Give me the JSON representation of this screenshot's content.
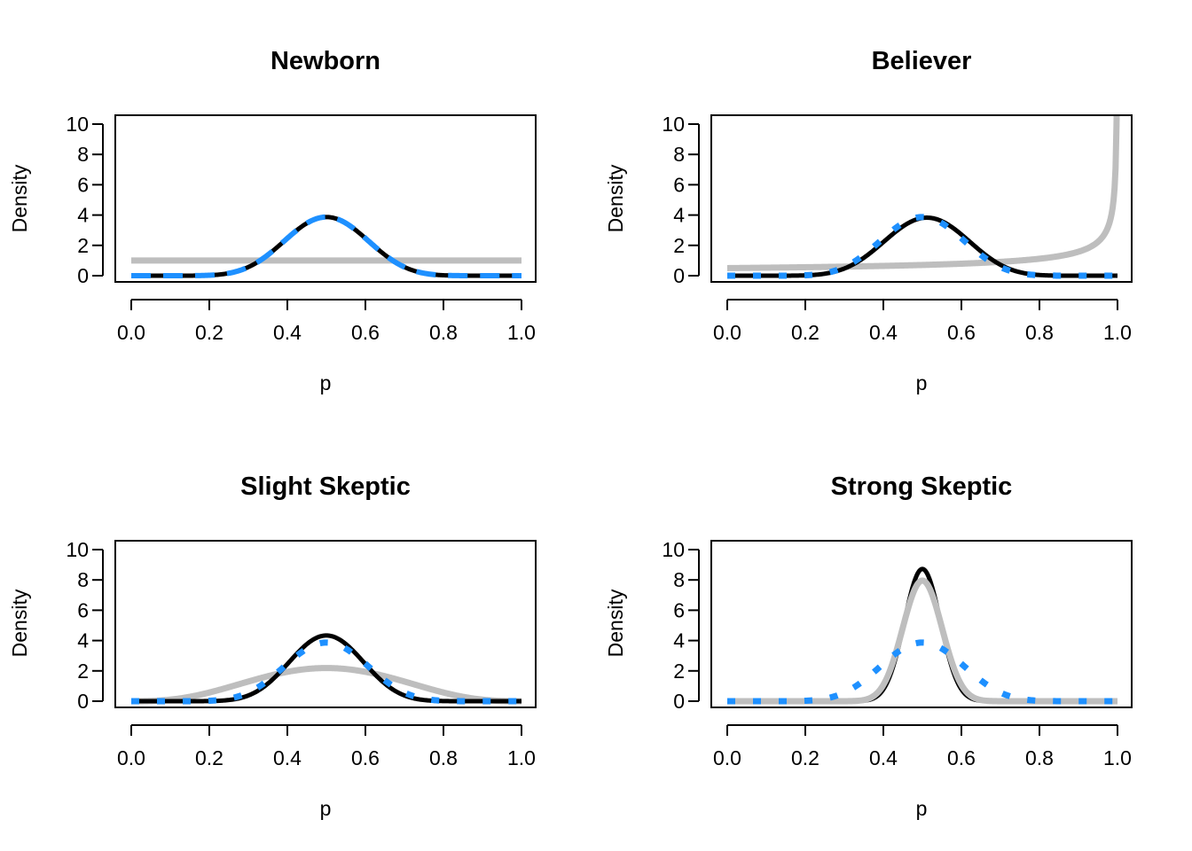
{
  "chart_data": [
    {
      "type": "line",
      "title": "Newborn",
      "xlabel": "p",
      "ylabel": "Density",
      "xlim": [
        0,
        1
      ],
      "ylim": [
        0,
        10
      ],
      "x_ticks": [
        "0.0",
        "0.2",
        "0.4",
        "0.6",
        "0.8",
        "1.0"
      ],
      "y_ticks": [
        "0",
        "2",
        "4",
        "6",
        "8",
        "10"
      ],
      "grid": false,
      "legend": "none",
      "series": [
        {
          "color": "#bebebe",
          "style": "solid-thick",
          "distribution": "beta",
          "alpha": 1,
          "beta": 1
        },
        {
          "color": "#000000",
          "style": "solid",
          "distribution": "beta",
          "alpha": 12,
          "beta": 12
        },
        {
          "color": "#1e90ff",
          "style": "dashed",
          "distribution": "beta",
          "alpha": 12,
          "beta": 12
        }
      ]
    },
    {
      "type": "line",
      "title": "Believer",
      "xlabel": "p",
      "ylabel": "Density",
      "xlim": [
        0,
        1
      ],
      "ylim": [
        0,
        10
      ],
      "x_ticks": [
        "0.0",
        "0.2",
        "0.4",
        "0.6",
        "0.8",
        "1.0"
      ],
      "y_ticks": [
        "0",
        "2",
        "4",
        "6",
        "8",
        "10"
      ],
      "grid": false,
      "legend": "none",
      "series": [
        {
          "color": "#bebebe",
          "style": "solid-thick",
          "distribution": "beta",
          "alpha": 1,
          "beta": 0.5
        },
        {
          "color": "#000000",
          "style": "solid",
          "distribution": "beta",
          "alpha": 12,
          "beta": 11.5
        },
        {
          "color": "#1e90ff",
          "style": "dotted",
          "distribution": "beta",
          "alpha": 12,
          "beta": 12
        }
      ]
    },
    {
      "type": "line",
      "title": "Slight Skeptic",
      "xlabel": "p",
      "ylabel": "Density",
      "xlim": [
        0,
        1
      ],
      "ylim": [
        0,
        10
      ],
      "x_ticks": [
        "0.0",
        "0.2",
        "0.4",
        "0.6",
        "0.8",
        "1.0"
      ],
      "y_ticks": [
        "0",
        "2",
        "4",
        "6",
        "8",
        "10"
      ],
      "grid": false,
      "legend": "none",
      "series": [
        {
          "color": "#bebebe",
          "style": "solid-thick",
          "distribution": "beta",
          "alpha": 4,
          "beta": 4
        },
        {
          "color": "#000000",
          "style": "solid",
          "distribution": "beta",
          "alpha": 15,
          "beta": 15
        },
        {
          "color": "#1e90ff",
          "style": "dotted",
          "distribution": "beta",
          "alpha": 12,
          "beta": 12
        }
      ]
    },
    {
      "type": "line",
      "title": "Strong Skeptic",
      "xlabel": "p",
      "ylabel": "Density",
      "xlim": [
        0,
        1
      ],
      "ylim": [
        0,
        10
      ],
      "x_ticks": [
        "0.0",
        "0.2",
        "0.4",
        "0.6",
        "0.8",
        "1.0"
      ],
      "y_ticks": [
        "0",
        "2",
        "4",
        "6",
        "8",
        "10"
      ],
      "grid": false,
      "legend": "none",
      "series": [
        {
          "color": "#000000",
          "style": "solid",
          "distribution": "beta",
          "alpha": 60,
          "beta": 60
        },
        {
          "color": "#bebebe",
          "style": "solid-thick",
          "distribution": "beta",
          "alpha": 50,
          "beta": 50
        },
        {
          "color": "#1e90ff",
          "style": "dotted",
          "distribution": "beta",
          "alpha": 12,
          "beta": 12
        }
      ]
    }
  ]
}
